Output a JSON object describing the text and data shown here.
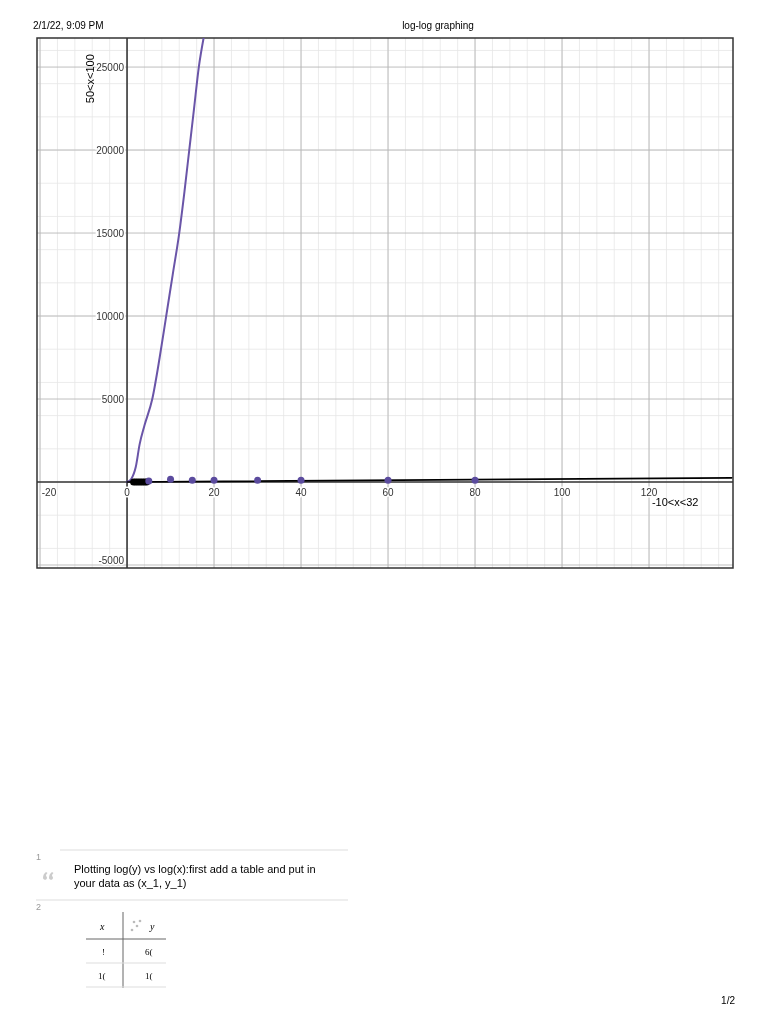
{
  "chart_data": {
    "type": "line",
    "title": "log-log graphing",
    "xlim": [
      -20.7,
      139.3
    ],
    "ylim": [
      -5180,
      26750
    ],
    "xticks": [
      -20,
      0,
      20,
      40,
      60,
      80,
      100,
      120
    ],
    "yticks": [
      -5000,
      5000,
      10000,
      15000,
      20000,
      25000
    ],
    "grid": true,
    "series": [
      {
        "marker": "none",
        "color": "#6a55a8",
        "x": [
          0,
          1,
          2,
          2.9,
          4,
          5.8,
          7.5,
          9,
          10.5,
          12,
          13.2,
          14.3,
          15.4,
          16.5,
          17.6
        ],
        "values": [
          0,
          200,
          900,
          2280,
          3400,
          5000,
          7500,
          10000,
          12500,
          15000,
          17500,
          20000,
          22500,
          25000,
          26750
        ]
      },
      {
        "marker": "none",
        "color": "#000000",
        "x": [
          0,
          139
        ],
        "values": [
          0,
          250
        ]
      },
      {
        "type": "scatter",
        "marker": "circle",
        "color": "#000000",
        "x": [
          1.5,
          2,
          2.5,
          3,
          3.5,
          4,
          4.5
        ],
        "values": [
          0,
          0,
          0,
          0,
          0,
          0,
          0
        ]
      },
      {
        "type": "scatter",
        "marker": "circle",
        "color": "#5b4b9e",
        "x": [
          5,
          10,
          15,
          20,
          30,
          40,
          60,
          80
        ],
        "values": [
          60,
          160,
          100,
          100,
          100,
          100,
          100,
          100
        ]
      }
    ],
    "annotations": [
      "2/1/22, 9:09 PM",
      "50<x<100",
      "-10<x<32",
      "1",
      "Plotting log(y) vs log(x):first add a table and put in your data as (x_1, y_1)",
      "2",
      "x",
      "y",
      "!",
      "6(",
      "1(",
      "1(",
      "1/2"
    ]
  }
}
